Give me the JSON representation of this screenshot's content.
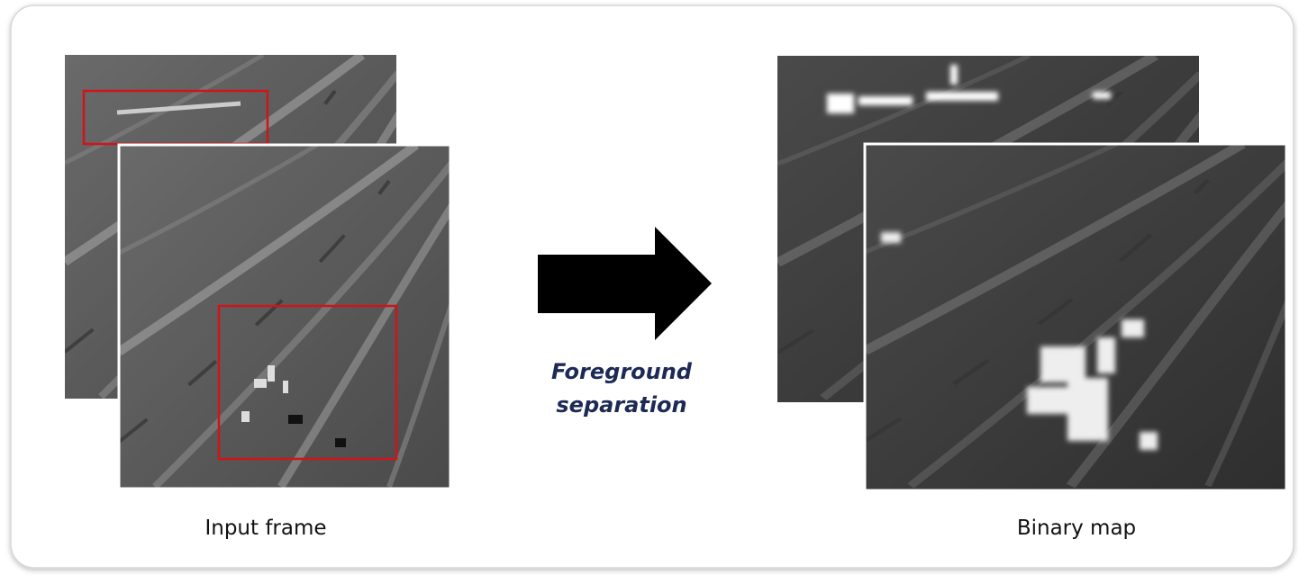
{
  "diagram": {
    "input_label": "Input frame",
    "process_lines": [
      "Foreground",
      "separation"
    ],
    "output_label": "Binary map"
  }
}
